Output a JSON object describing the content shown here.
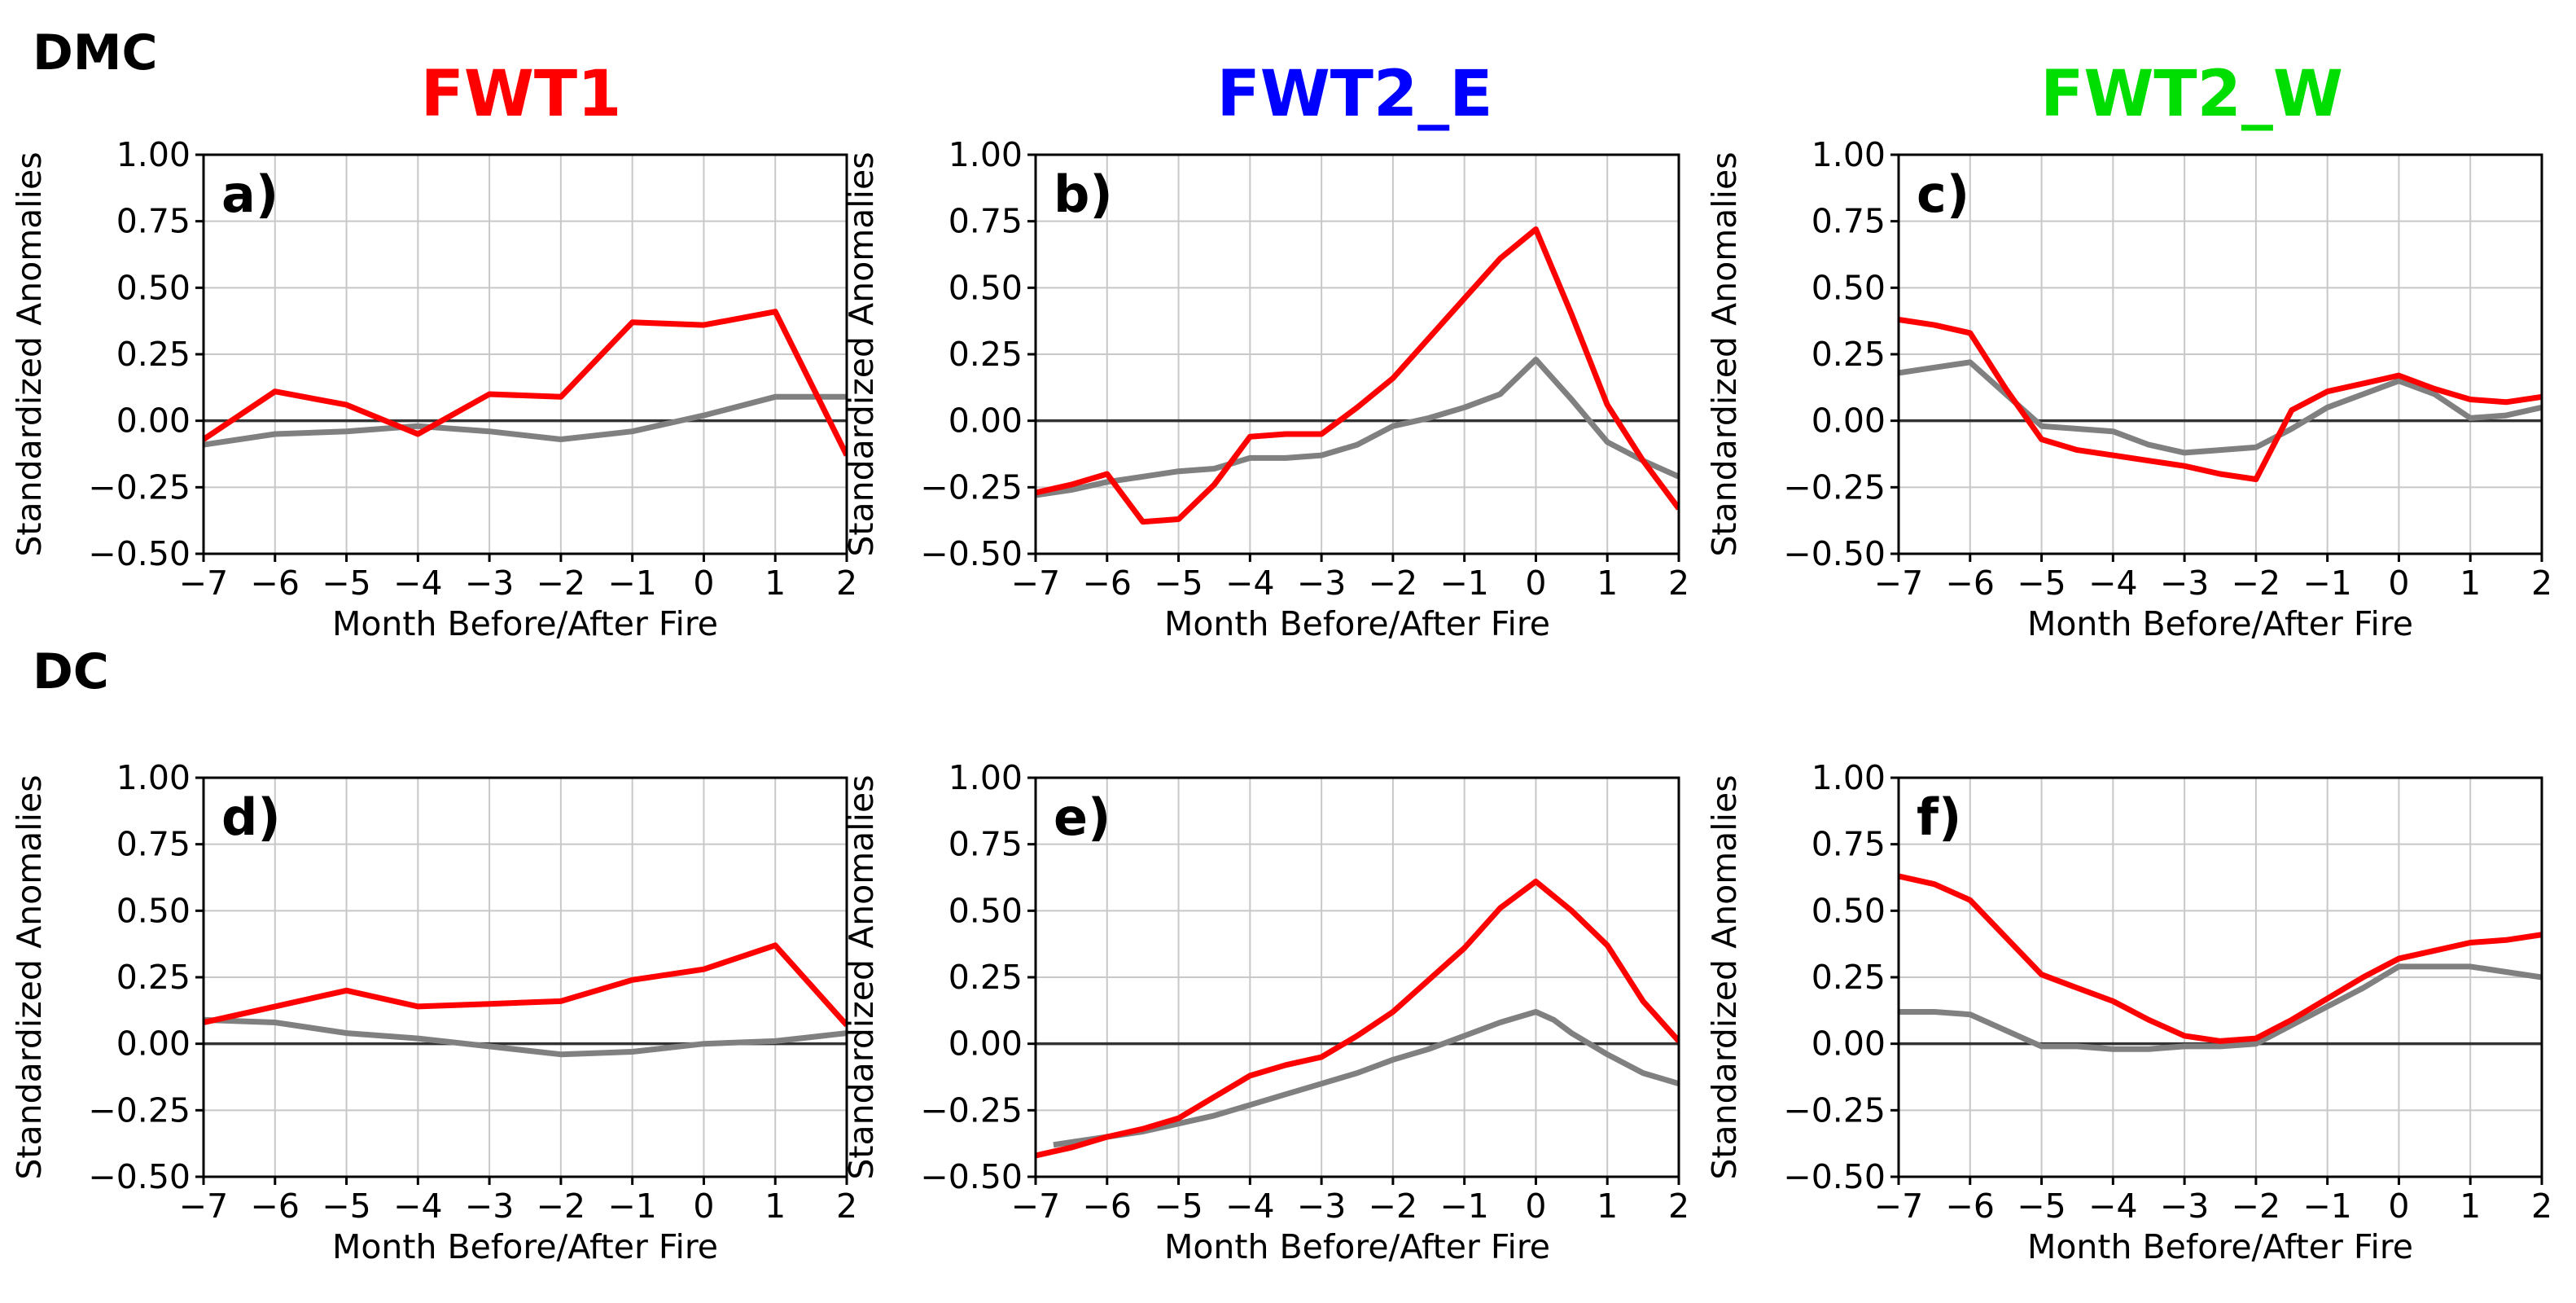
{
  "figure": {
    "row_labels": [
      "DMC",
      "DC"
    ],
    "column_titles": [
      {
        "text": "FWT1",
        "color": "#ff0000"
      },
      {
        "text": "FWT2_E",
        "color": "#0000ff"
      },
      {
        "text": "FWT2_W",
        "color": "#00dd00"
      }
    ],
    "series_colors": {
      "red": "#ff0000",
      "gray": "#808080"
    }
  },
  "chart_data": [
    {
      "panel": "a)",
      "type": "line",
      "xlabel": "Month Before/After Fire",
      "ylabel": "Standardized Anomalies",
      "xlim": [
        -7,
        2
      ],
      "ylim": [
        -0.5,
        1.0
      ],
      "xticks": [
        -7,
        -6,
        -5,
        -4,
        -3,
        -2,
        -1,
        0,
        1,
        2
      ],
      "xtick_labels": [
        "−7",
        "−6",
        "−5",
        "−4",
        "−3",
        "−2",
        "−1",
        "0",
        "1",
        "2"
      ],
      "yticks": [
        -0.5,
        -0.25,
        0,
        0.25,
        0.5,
        0.75,
        1.0
      ],
      "ytick_labels": [
        "−0.50",
        "−0.25",
        "0.00",
        "0.25",
        "0.50",
        "0.75",
        "1.00"
      ],
      "series": [
        {
          "name": "red",
          "color": "#ff0000",
          "x": [
            -7,
            -6,
            -5,
            -4,
            -3,
            -2,
            -1,
            0,
            1,
            2
          ],
          "y": [
            -0.07,
            0.11,
            0.06,
            -0.05,
            0.1,
            0.09,
            0.37,
            0.36,
            0.41,
            -0.13
          ]
        },
        {
          "name": "gray",
          "color": "#808080",
          "x": [
            -7,
            -6,
            -5,
            -4,
            -3,
            -2,
            -1,
            0,
            1,
            2
          ],
          "y": [
            -0.09,
            -0.05,
            -0.04,
            -0.02,
            -0.04,
            -0.07,
            -0.04,
            0.02,
            0.09,
            0.09
          ]
        }
      ]
    },
    {
      "panel": "b)",
      "type": "line",
      "xlabel": "Month Before/After Fire",
      "ylabel": "Standardized Anomalies",
      "xlim": [
        -7,
        2
      ],
      "ylim": [
        -0.5,
        1.0
      ],
      "xticks": [
        -7,
        -6,
        -5,
        -4,
        -3,
        -2,
        -1,
        0,
        1,
        2
      ],
      "xtick_labels": [
        "−7",
        "−6",
        "−5",
        "−4",
        "−3",
        "−2",
        "−1",
        "0",
        "1",
        "2"
      ],
      "yticks": [
        -0.5,
        -0.25,
        0,
        0.25,
        0.5,
        0.75,
        1.0
      ],
      "ytick_labels": [
        "−0.50",
        "−0.25",
        "0.00",
        "0.25",
        "0.50",
        "0.75",
        "1.00"
      ],
      "series": [
        {
          "name": "red",
          "color": "#ff0000",
          "x": [
            -7,
            -6.5,
            -6,
            -5.5,
            -5,
            -4.5,
            -4,
            -3.5,
            -3,
            -2.5,
            -2,
            -1.5,
            -1,
            -0.5,
            0,
            0.5,
            1,
            1.5,
            2
          ],
          "y": [
            -0.27,
            -0.24,
            -0.2,
            -0.38,
            -0.37,
            -0.24,
            -0.06,
            -0.05,
            -0.05,
            0.05,
            0.16,
            0.31,
            0.46,
            0.61,
            0.72,
            0.4,
            0.06,
            -0.15,
            -0.33
          ]
        },
        {
          "name": "gray",
          "color": "#808080",
          "x": [
            -7,
            -6.5,
            -6,
            -5.5,
            -5,
            -4.5,
            -4,
            -3.5,
            -3,
            -2.5,
            -2,
            -1.5,
            -1,
            -0.5,
            0,
            0.5,
            1,
            1.5,
            2
          ],
          "y": [
            -0.28,
            -0.26,
            -0.23,
            -0.21,
            -0.19,
            -0.18,
            -0.14,
            -0.14,
            -0.13,
            -0.09,
            -0.02,
            0.01,
            0.05,
            0.1,
            0.23,
            0.08,
            -0.08,
            -0.15,
            -0.21
          ]
        }
      ]
    },
    {
      "panel": "c)",
      "type": "line",
      "xlabel": "Month Before/After Fire",
      "ylabel": "Standardized Anomalies",
      "xlim": [
        -7,
        2
      ],
      "ylim": [
        -0.5,
        1.0
      ],
      "xticks": [
        -7,
        -6,
        -5,
        -4,
        -3,
        -2,
        -1,
        0,
        1,
        2
      ],
      "xtick_labels": [
        "−7",
        "−6",
        "−5",
        "−4",
        "−3",
        "−2",
        "−1",
        "0",
        "1",
        "2"
      ],
      "yticks": [
        -0.5,
        -0.25,
        0,
        0.25,
        0.5,
        0.75,
        1.0
      ],
      "ytick_labels": [
        "−0.50",
        "−0.25",
        "0.00",
        "0.25",
        "0.50",
        "0.75",
        "1.00"
      ],
      "series": [
        {
          "name": "red",
          "color": "#ff0000",
          "x": [
            -7,
            -6.5,
            -6,
            -5.5,
            -5,
            -4.5,
            -4,
            -3.5,
            -3,
            -2.5,
            -2,
            -1.5,
            -1,
            -0.5,
            0,
            0.5,
            1,
            1.5,
            2
          ],
          "y": [
            0.38,
            0.36,
            0.33,
            0.12,
            -0.07,
            -0.11,
            -0.13,
            -0.15,
            -0.17,
            -0.2,
            -0.22,
            0.04,
            0.11,
            0.14,
            0.17,
            0.12,
            0.08,
            0.07,
            0.09
          ]
        },
        {
          "name": "gray",
          "color": "#808080",
          "x": [
            -7,
            -6.5,
            -6,
            -5.5,
            -5,
            -4.5,
            -4,
            -3.5,
            -3,
            -2.5,
            -2,
            -1.5,
            -1,
            -0.5,
            0,
            0.5,
            1,
            1.5,
            2
          ],
          "y": [
            0.18,
            0.2,
            0.22,
            0.1,
            -0.02,
            -0.03,
            -0.04,
            -0.09,
            -0.12,
            -0.11,
            -0.1,
            -0.03,
            0.05,
            0.1,
            0.15,
            0.1,
            0.01,
            0.02,
            0.05
          ]
        }
      ]
    },
    {
      "panel": "d)",
      "type": "line",
      "xlabel": "Month Before/After Fire",
      "ylabel": "Standardized Anomalies",
      "xlim": [
        -7,
        2
      ],
      "ylim": [
        -0.5,
        1.0
      ],
      "xticks": [
        -7,
        -6,
        -5,
        -4,
        -3,
        -2,
        -1,
        0,
        1,
        2
      ],
      "xtick_labels": [
        "−7",
        "−6",
        "−5",
        "−4",
        "−3",
        "−2",
        "−1",
        "0",
        "1",
        "2"
      ],
      "yticks": [
        -0.5,
        -0.25,
        0,
        0.25,
        0.5,
        0.75,
        1.0
      ],
      "ytick_labels": [
        "−0.50",
        "−0.25",
        "0.00",
        "0.25",
        "0.50",
        "0.75",
        "1.00"
      ],
      "series": [
        {
          "name": "red",
          "color": "#ff0000",
          "x": [
            -7,
            -6,
            -5,
            -4,
            -3,
            -2,
            -1,
            0,
            1,
            2
          ],
          "y": [
            0.08,
            0.14,
            0.2,
            0.14,
            0.15,
            0.16,
            0.24,
            0.28,
            0.37,
            0.07
          ]
        },
        {
          "name": "gray",
          "color": "#808080",
          "x": [
            -7,
            -6,
            -5,
            -4,
            -3,
            -2,
            -1,
            0,
            1,
            2
          ],
          "y": [
            0.09,
            0.08,
            0.04,
            0.02,
            -0.01,
            -0.04,
            -0.03,
            0.0,
            0.01,
            0.04
          ]
        }
      ]
    },
    {
      "panel": "e)",
      "type": "line",
      "xlabel": "Month Before/After Fire",
      "ylabel": "Standardized Anomalies",
      "xlim": [
        -7,
        2
      ],
      "ylim": [
        -0.5,
        1.0
      ],
      "xticks": [
        -7,
        -6,
        -5,
        -4,
        -3,
        -2,
        -1,
        0,
        1,
        2
      ],
      "xtick_labels": [
        "−7",
        "−6",
        "−5",
        "−4",
        "−3",
        "−2",
        "−1",
        "0",
        "1",
        "2"
      ],
      "yticks": [
        -0.5,
        -0.25,
        0,
        0.25,
        0.5,
        0.75,
        1.0
      ],
      "ytick_labels": [
        "−0.50",
        "−0.25",
        "0.00",
        "0.25",
        "0.50",
        "0.75",
        "1.00"
      ],
      "series": [
        {
          "name": "red",
          "color": "#ff0000",
          "x": [
            -7,
            -6.5,
            -6,
            -5.5,
            -5,
            -4.5,
            -4,
            -3.5,
            -3,
            -2.5,
            -2,
            -1.5,
            -1,
            -0.5,
            0,
            0.5,
            1,
            1.5,
            2
          ],
          "y": [
            -0.42,
            -0.39,
            -0.35,
            -0.32,
            -0.28,
            -0.2,
            -0.12,
            -0.08,
            -0.05,
            0.03,
            0.12,
            0.24,
            0.36,
            0.51,
            0.61,
            0.5,
            0.37,
            0.16,
            0.01
          ]
        },
        {
          "name": "gray",
          "color": "#808080",
          "x": [
            -6.75,
            -6.5,
            -6,
            -5.5,
            -5,
            -4.5,
            -4,
            -3.5,
            -3,
            -2.5,
            -2,
            -1.5,
            -1,
            -0.5,
            0,
            0.25,
            0.5,
            1,
            1.5,
            2
          ],
          "y": [
            -0.38,
            -0.37,
            -0.35,
            -0.33,
            -0.3,
            -0.27,
            -0.23,
            -0.19,
            -0.15,
            -0.11,
            -0.06,
            -0.02,
            0.03,
            0.08,
            0.12,
            0.09,
            0.04,
            -0.04,
            -0.11,
            -0.15
          ]
        }
      ]
    },
    {
      "panel": "f)",
      "type": "line",
      "xlabel": "Month Before/After Fire",
      "ylabel": "Standardized Anomalies",
      "xlim": [
        -7,
        2
      ],
      "ylim": [
        -0.5,
        1.0
      ],
      "xticks": [
        -7,
        -6,
        -5,
        -4,
        -3,
        -2,
        -1,
        0,
        1,
        2
      ],
      "xtick_labels": [
        "−7",
        "−6",
        "−5",
        "−4",
        "−3",
        "−2",
        "−1",
        "0",
        "1",
        "2"
      ],
      "yticks": [
        -0.5,
        -0.25,
        0,
        0.25,
        0.5,
        0.75,
        1.0
      ],
      "ytick_labels": [
        "−0.50",
        "−0.25",
        "0.00",
        "0.25",
        "0.50",
        "0.75",
        "1.00"
      ],
      "series": [
        {
          "name": "red",
          "color": "#ff0000",
          "x": [
            -7,
            -6.5,
            -6,
            -5.5,
            -5,
            -4.5,
            -4,
            -3.5,
            -3,
            -2.5,
            -2,
            -1.5,
            -1,
            -0.5,
            0,
            0.5,
            1,
            1.5,
            2
          ],
          "y": [
            0.63,
            0.6,
            0.54,
            0.4,
            0.26,
            0.21,
            0.16,
            0.09,
            0.03,
            0.01,
            0.02,
            0.09,
            0.17,
            0.25,
            0.32,
            0.35,
            0.38,
            0.39,
            0.41
          ]
        },
        {
          "name": "gray",
          "color": "#808080",
          "x": [
            -7,
            -6.5,
            -6,
            -5.5,
            -5,
            -4.5,
            -4,
            -3.5,
            -3,
            -2.5,
            -2,
            -1.5,
            -1,
            -0.5,
            0,
            0.5,
            1,
            1.5,
            2
          ],
          "y": [
            0.12,
            0.12,
            0.11,
            0.05,
            -0.01,
            -0.01,
            -0.02,
            -0.02,
            -0.01,
            -0.01,
            0.0,
            0.07,
            0.14,
            0.21,
            0.29,
            0.29,
            0.29,
            0.27,
            0.25
          ]
        }
      ]
    }
  ]
}
